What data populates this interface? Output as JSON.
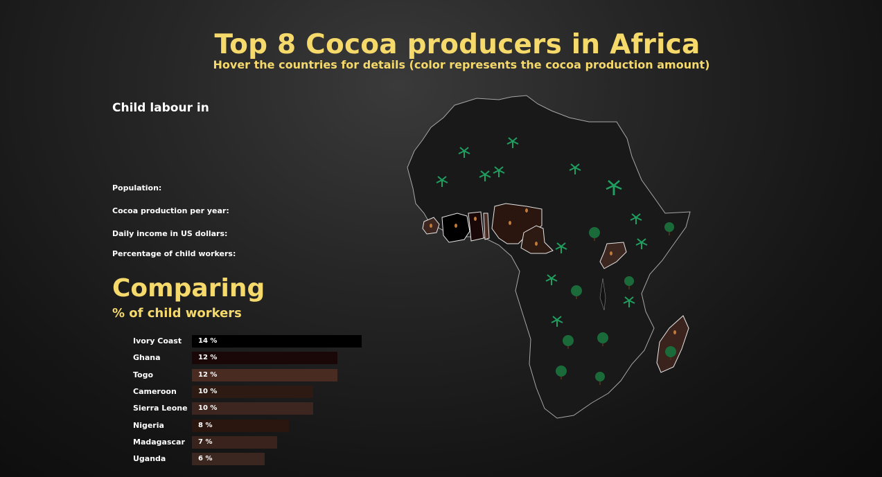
{
  "header": {
    "title": "Top 8 Cocoa producers in Africa",
    "subtitle": "Hover the countries for details (color represents the cocoa production amount)"
  },
  "details": {
    "heading": "Child labour in",
    "population_label": "Population:",
    "production_label": "Cocoa production per year:",
    "income_label": "Daily income in US dollars:",
    "percentage_label": "Percentage of child workers:"
  },
  "comparison": {
    "title": "Comparing",
    "subtitle": "% of child workers"
  },
  "chart_data": {
    "type": "bar",
    "categories": [
      "Ivory Coast",
      "Ghana",
      "Togo",
      "Cameroon",
      "Sierra Leone",
      "Nigeria",
      "Madagascar",
      "Uganda"
    ],
    "values": [
      14,
      12,
      12,
      10,
      10,
      8,
      7,
      6
    ],
    "value_labels": [
      "14 %",
      "12 %",
      "12 %",
      "10 %",
      "10 %",
      "8 %",
      "7 %",
      "6 %"
    ],
    "colors": [
      "#000000",
      "#1a0707",
      "#4a2b22",
      "#2d1a12",
      "#3e2620",
      "#2a160e",
      "#3a231c",
      "#3c2620"
    ],
    "orientation": "horizontal",
    "grid": false
  },
  "map": {
    "highlighted_countries": [
      "Sierra Leone",
      "Ivory Coast",
      "Ghana",
      "Togo",
      "Nigeria",
      "Cameroon",
      "Uganda",
      "Madagascar"
    ],
    "country_fill": {
      "Sierra Leone": "#3e2620",
      "Ivory Coast": "#000000",
      "Ghana": "#1a0707",
      "Togo": "#4a2b22",
      "Nigeria": "#2a160e",
      "Cameroon": "#2d1a12",
      "Uganda": "#3c2620",
      "Madagascar": "#3a231c"
    },
    "continent_fill": "#191919",
    "outline_color": "#a8a8a8",
    "palm_color": "#20a060",
    "tree_color": "#1b6b3a",
    "icons": [
      "palm-tree-icon",
      "tree-icon",
      "cocoa-pod-icon"
    ]
  }
}
